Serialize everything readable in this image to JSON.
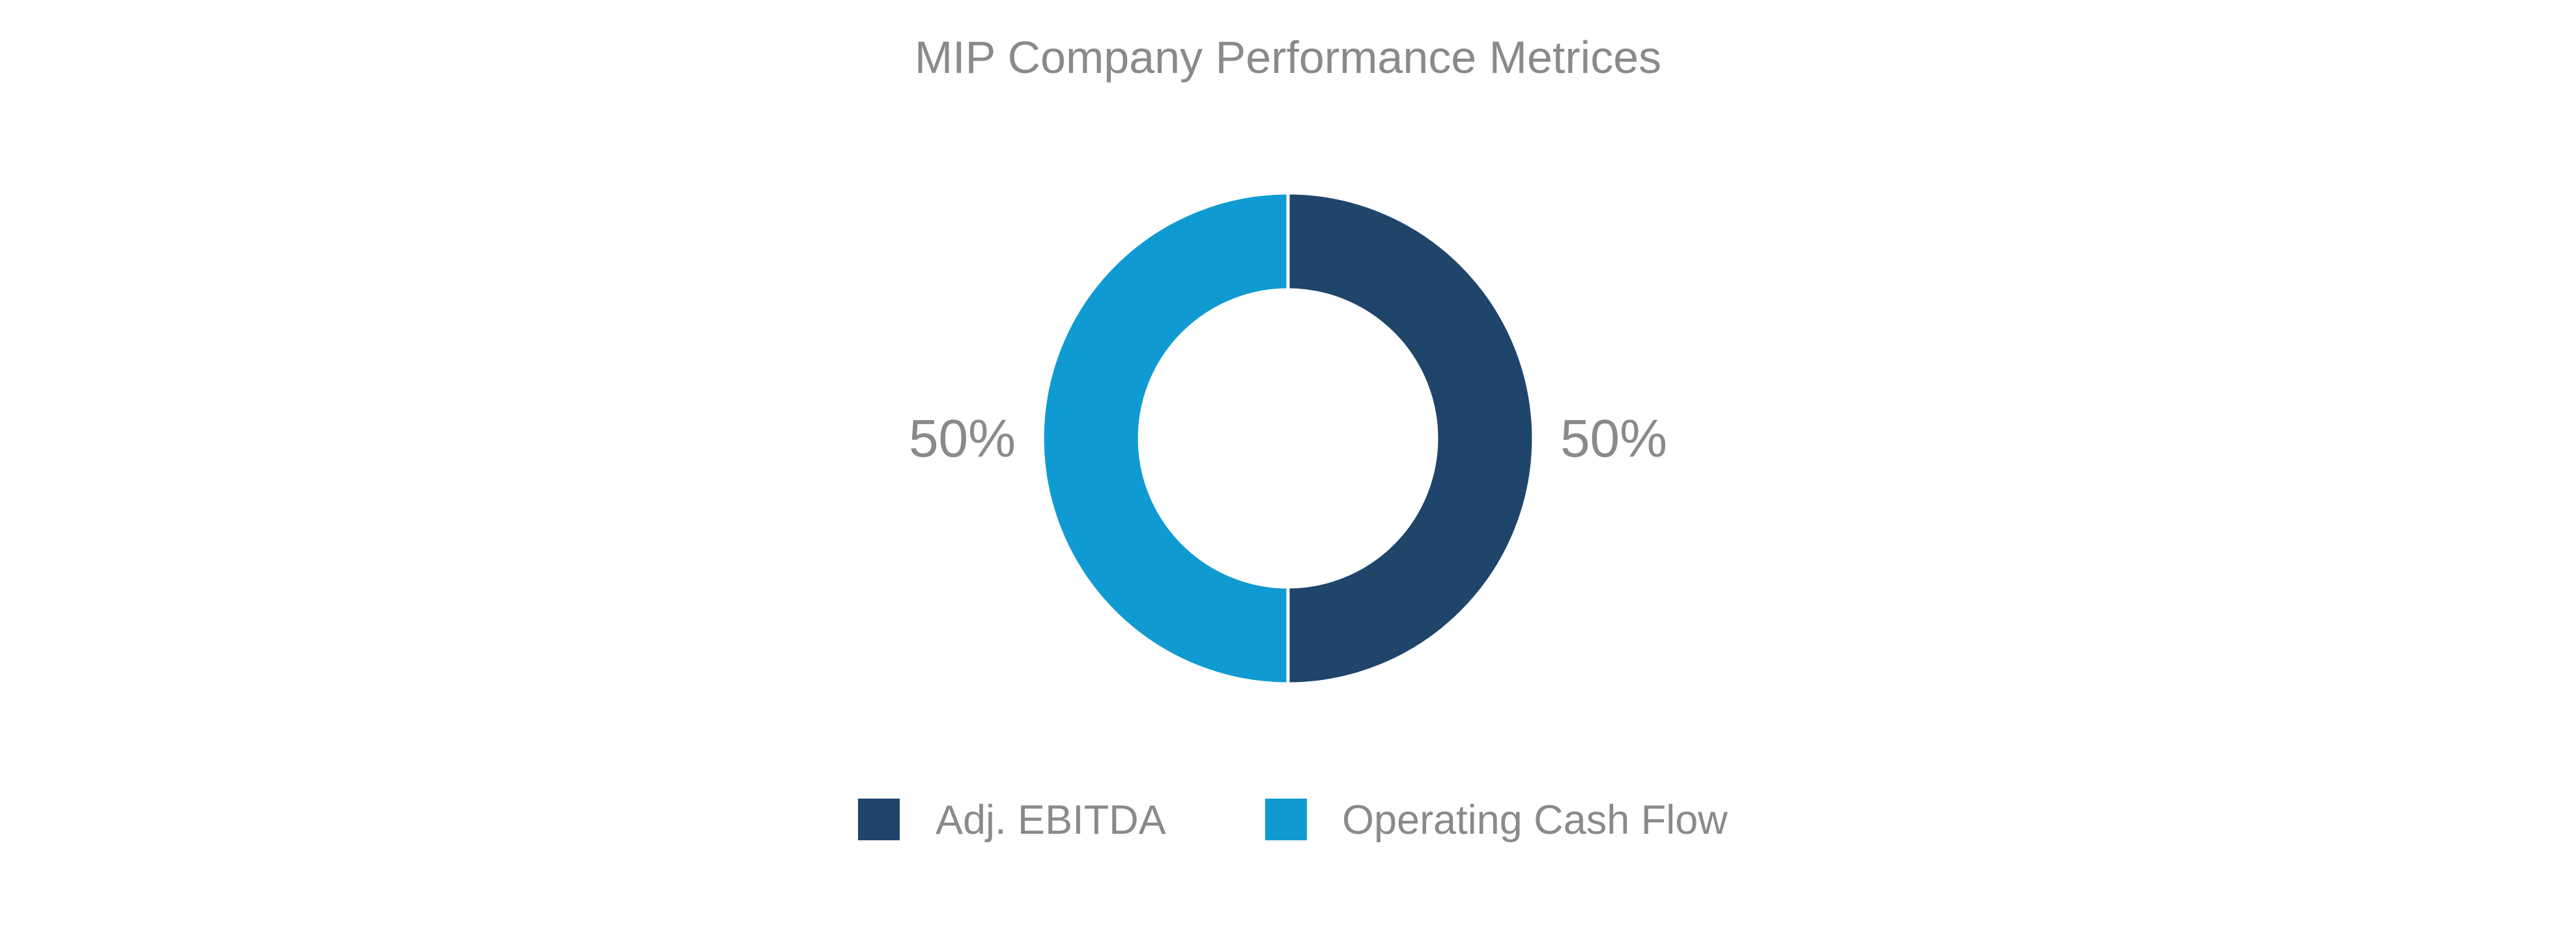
{
  "chart_data": {
    "type": "pie",
    "style": "donut",
    "title": "MIP Company Performance Metrices",
    "slices": [
      {
        "label": "Adj. EBITDA",
        "value": 50,
        "display": "50%",
        "color": "#1f456b"
      },
      {
        "label": "Operating Cash Flow",
        "value": 50,
        "display": "50%",
        "color": "#0f9bd1"
      }
    ],
    "legend": {
      "placement": "bottom",
      "entries": [
        "Adj. EBITDA",
        "Operating Cash Flow"
      ]
    },
    "label_color": "#8a8a8a"
  }
}
